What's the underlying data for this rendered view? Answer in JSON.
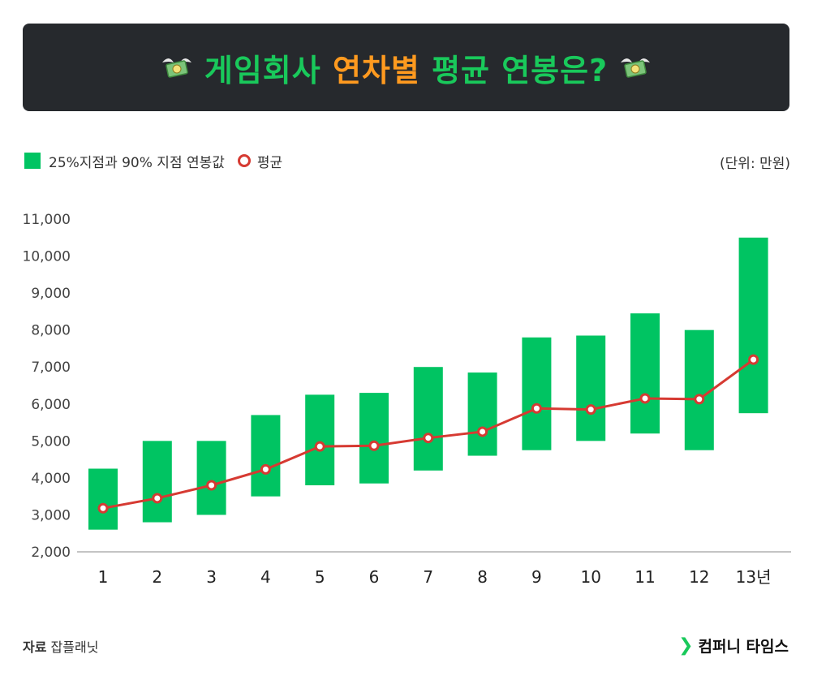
{
  "title": {
    "part1": "게임회사",
    "part2": "연차별",
    "part3": "평균 연봉은?",
    "icon": "flying-money-icon"
  },
  "legend": {
    "range_label": "25%지점과 90% 지점 연봉값",
    "avg_label": "평균"
  },
  "unit": "(단위: 만원)",
  "source": {
    "label": "자료",
    "value": "잡플래닛"
  },
  "brand": "컴퍼니 타임스",
  "colors": {
    "bar": "#00c462",
    "line": "#d63a32",
    "title_bg": "#26292d"
  },
  "chart_data": {
    "type": "bar",
    "categories": [
      "1",
      "2",
      "3",
      "4",
      "5",
      "6",
      "7",
      "8",
      "9",
      "10",
      "11",
      "12",
      "13년"
    ],
    "series": [
      {
        "name": "25%지점과 90% 지점 연봉값",
        "kind": "range",
        "low": [
          2600,
          2800,
          3000,
          3500,
          3800,
          3850,
          4200,
          4600,
          4750,
          5000,
          5200,
          4750,
          5750
        ],
        "high": [
          4250,
          5000,
          5000,
          5700,
          6250,
          6300,
          7000,
          6850,
          7800,
          7850,
          8450,
          8000,
          10500
        ]
      },
      {
        "name": "평균",
        "kind": "line",
        "values": [
          3180,
          3450,
          3800,
          4230,
          4850,
          4870,
          5080,
          5250,
          5880,
          5850,
          6150,
          6130,
          7200
        ]
      }
    ],
    "yticks": [
      "2,000",
      "3,000",
      "4,000",
      "5,000",
      "6,000",
      "7,000",
      "8,000",
      "9,000",
      "10,000",
      "11,000"
    ],
    "ylim": [
      2000,
      11000
    ],
    "grid": false,
    "legend_position": "top-left"
  }
}
